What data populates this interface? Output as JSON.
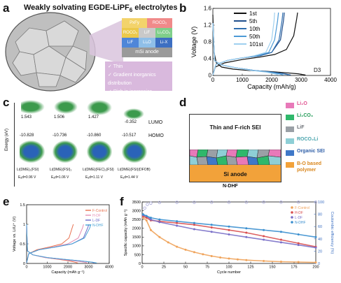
{
  "panels": {
    "a": {
      "label": "a",
      "title": "Weakly solvating EGDE-LiPF",
      "title_sub": "6",
      "title_tail": " electrolytes",
      "sei_layers": [
        {
          "cells": [
            {
              "text": "PxFy",
              "color": "#f3d36b"
            },
            {
              "text": "ROCO₂",
              "color": "#f08a8a"
            }
          ]
        },
        {
          "cells": [
            {
              "text": "ROCO₂",
              "color": "#ecc94b"
            },
            {
              "text": "LiF",
              "color": "#c9c9c9"
            },
            {
              "text": "Li₂CO₃",
              "color": "#7fcf8a"
            }
          ]
        },
        {
          "cells": [
            {
              "text": "LiF",
              "color": "#4f86d8"
            },
            {
              "text": "Li₂O",
              "color": "#8fbfe8"
            },
            {
              "text": "Li-X",
              "color": "#3d6fc2"
            }
          ]
        }
      ],
      "anode_label": "mSi anode",
      "bullets": [
        "Thin",
        "Gradient inorganics distribution",
        "Rich in inorganics"
      ]
    },
    "b": {
      "label": "b",
      "note": "D3"
    },
    "c": {
      "label": "c",
      "y_label": "Energy (eV)",
      "lumo_label": "LUMO",
      "homo_label": "HOMO",
      "lumo_values": [
        "1.543",
        "1.506",
        "1.427",
        "-0.352"
      ],
      "homo_values": [
        "-10.828",
        "-10.736",
        "-10.860",
        "-10.517"
      ],
      "species": [
        "Li(DME)₂(FSI)",
        "Li(DME)(FSI)₂",
        "Li(DME)(FEC)₂(FSI)",
        "Li(DME)(FSI)(DFOB)"
      ],
      "ead": [
        "Eₐd=0.96 V",
        "Eₐd=1.06 V",
        "Eₐd=1.11 V",
        "Eₐd=1.44 V"
      ]
    },
    "d": {
      "label": "d",
      "sei_text": "Thin and F-rich SEI",
      "anode_text": "Si anode",
      "caption": "N-DHF",
      "legend": [
        {
          "text": "Li₂O",
          "color": "#e879b9"
        },
        {
          "text": "Li₂CO₃",
          "color": "#2fb86b"
        },
        {
          "text": "LiF",
          "color": "#9aa0a6"
        },
        {
          "text": "ROCO₂Li",
          "color": "#8ecfd6"
        },
        {
          "text": "Organic SEI",
          "color": "#3f78c8"
        },
        {
          "text": "B-O based polymer",
          "color": "#f2a23a"
        }
      ]
    },
    "e": {
      "label": "e"
    },
    "f": {
      "label": "f"
    }
  },
  "chart_data": [
    {
      "id": "b",
      "type": "line",
      "xlabel": "Capacity (mAh/g)",
      "ylabel": "Voltage (V)",
      "xlim": [
        0,
        4000
      ],
      "ylim": [
        0,
        1.6
      ],
      "xticks": [
        0,
        1000,
        2000,
        3000,
        4000
      ],
      "yticks": [
        0,
        0.4,
        0.8,
        1.2,
        1.6
      ],
      "series": [
        {
          "name": "1st",
          "color": "#111111",
          "discharge": {
            "x": [
              0,
              40,
              120,
              300,
              700,
              1200,
              1800,
              2400,
              2900,
              3150
            ],
            "y": [
              1.45,
              0.55,
              0.3,
              0.2,
              0.15,
              0.12,
              0.1,
              0.07,
              0.04,
              0.01
            ]
          },
          "charge": {
            "x": [
              0,
              80,
              400,
              1000,
              1600,
              2100,
              2500,
              2750,
              2850,
              2880
            ],
            "y": [
              0.01,
              0.2,
              0.3,
              0.38,
              0.44,
              0.5,
              0.62,
              0.95,
              1.35,
              1.5
            ]
          }
        },
        {
          "name": "5th",
          "color": "#1f4e8c",
          "discharge": {
            "x": [
              0,
              60,
              300,
              800,
              1400,
              2000,
              2450,
              2650
            ],
            "y": [
              1.25,
              0.35,
              0.25,
              0.18,
              0.12,
              0.08,
              0.04,
              0.01
            ]
          },
          "charge": {
            "x": [
              0,
              100,
              500,
              1000,
              1600,
              2000,
              2300,
              2400,
              2430
            ],
            "y": [
              0.01,
              0.26,
              0.36,
              0.42,
              0.47,
              0.55,
              0.85,
              1.3,
              1.5
            ]
          }
        },
        {
          "name": "10th",
          "color": "#2f6fb0",
          "discharge": {
            "x": [
              0,
              60,
              300,
              800,
              1400,
              2000,
              2400,
              2600
            ],
            "y": [
              1.25,
              0.35,
              0.25,
              0.18,
              0.12,
              0.08,
              0.04,
              0.01
            ]
          },
          "charge": {
            "x": [
              0,
              100,
              500,
              1000,
              1600,
              2000,
              2250,
              2350,
              2380
            ],
            "y": [
              0.01,
              0.26,
              0.36,
              0.42,
              0.47,
              0.55,
              0.85,
              1.3,
              1.5
            ]
          }
        },
        {
          "name": "50th",
          "color": "#4c9ad6",
          "discharge": {
            "x": [
              0,
              60,
              300,
              800,
              1400,
              1900,
              2250,
              2400
            ],
            "y": [
              1.25,
              0.35,
              0.25,
              0.18,
              0.12,
              0.08,
              0.04,
              0.01
            ]
          },
          "charge": {
            "x": [
              0,
              100,
              500,
              1000,
              1500,
              1900,
              2100,
              2200,
              2230
            ],
            "y": [
              0.01,
              0.26,
              0.36,
              0.42,
              0.47,
              0.55,
              0.85,
              1.3,
              1.5
            ]
          }
        },
        {
          "name": "101st",
          "color": "#9fd0ef",
          "discharge": {
            "x": [
              0,
              60,
              300,
              800,
              1300,
              1800,
              2100,
              2250
            ],
            "y": [
              1.25,
              0.35,
              0.25,
              0.18,
              0.12,
              0.08,
              0.04,
              0.01
            ]
          },
          "charge": {
            "x": [
              0,
              100,
              500,
              1000,
              1400,
              1800,
              2000,
              2080,
              2100
            ],
            "y": [
              0.01,
              0.26,
              0.36,
              0.42,
              0.47,
              0.55,
              0.85,
              1.3,
              1.5
            ]
          }
        }
      ]
    },
    {
      "id": "e",
      "type": "line",
      "xlabel": "Capacity (mAh g⁻¹)",
      "ylabel": "Voltage vs. Li/Li⁺ (V)",
      "xlim": [
        0,
        4000
      ],
      "ylim": [
        0,
        1.5
      ],
      "xticks": [
        0,
        1000,
        2000,
        3000,
        4000
      ],
      "yticks": [
        0,
        0.5,
        1.0,
        1.5
      ],
      "series": [
        {
          "name": "F-Control",
          "color": "#e8704f",
          "discharge": {
            "x": [
              0,
              40,
              300,
              900,
              1600,
              2100,
              2350,
              2480
            ],
            "y": [
              1.0,
              0.32,
              0.22,
              0.15,
              0.1,
              0.06,
              0.03,
              0.01
            ]
          },
          "charge": {
            "x": [
              0,
              100,
              500,
              1100,
              1700,
              2050,
              2200,
              2260
            ],
            "y": [
              0.01,
              0.25,
              0.35,
              0.42,
              0.5,
              0.65,
              0.9,
              1.0
            ]
          }
        },
        {
          "name": "H-DF",
          "color": "#e58fb4",
          "discharge": {
            "x": [
              0,
              40,
              300,
              900,
              1700,
              2400,
              2800,
              2950
            ],
            "y": [
              1.0,
              0.32,
              0.22,
              0.15,
              0.1,
              0.06,
              0.03,
              0.01
            ]
          },
          "charge": {
            "x": [
              0,
              100,
              600,
              1300,
              2000,
              2500,
              2700,
              2760
            ],
            "y": [
              0.01,
              0.25,
              0.35,
              0.42,
              0.5,
              0.65,
              0.9,
              1.0
            ]
          }
        },
        {
          "name": "L-DF",
          "color": "#6a6ac9",
          "discharge": {
            "x": [
              0,
              40,
              300,
              1000,
              1900,
              2700,
              3150,
              3300
            ],
            "y": [
              1.0,
              0.32,
              0.22,
              0.15,
              0.1,
              0.06,
              0.03,
              0.01
            ]
          },
          "charge": {
            "x": [
              0,
              100,
              600,
              1400,
              2200,
              2750,
              2950,
              3020
            ],
            "y": [
              0.01,
              0.25,
              0.35,
              0.42,
              0.5,
              0.65,
              0.9,
              1.0
            ]
          }
        },
        {
          "name": "N-DHF",
          "color": "#4aa3d6",
          "discharge": {
            "x": [
              0,
              40,
              300,
              1000,
              1900,
              2700,
              3200,
              3400
            ],
            "y": [
              1.0,
              0.32,
              0.22,
              0.15,
              0.1,
              0.06,
              0.03,
              0.01
            ]
          },
          "charge": {
            "x": [
              0,
              100,
              600,
              1400,
              2200,
              2800,
              3050,
              3120
            ],
            "y": [
              0.01,
              0.25,
              0.35,
              0.42,
              0.5,
              0.65,
              0.9,
              1.0
            ]
          }
        }
      ]
    },
    {
      "id": "f",
      "type": "scatter",
      "xlabel": "Cycle number",
      "ylabel": "Specific capacity (mAh g⁻¹)",
      "y2label": "Coulombic efficiency (%)",
      "xlim": [
        0,
        200
      ],
      "ylim": [
        0,
        3500
      ],
      "y2lim": [
        0,
        100
      ],
      "xticks": [
        0,
        25,
        50,
        75,
        100,
        125,
        150,
        175,
        200
      ],
      "yticks": [
        0,
        500,
        1000,
        1500,
        2000,
        2500,
        3000,
        3500
      ],
      "y2ticks": [
        0,
        20,
        40,
        60,
        80,
        100
      ],
      "series": [
        {
          "name": "F-Control",
          "color": "#f0a35a",
          "x": [
            1,
            5,
            10,
            20,
            30,
            40,
            50,
            60,
            70,
            80,
            90,
            100,
            110,
            120,
            140,
            160,
            180,
            200
          ],
          "y": [
            2600,
            2450,
            1900,
            1500,
            1200,
            950,
            780,
            640,
            520,
            420,
            340,
            280,
            230,
            190,
            140,
            100,
            80,
            60
          ]
        },
        {
          "name": "H-DF",
          "color": "#d94f4f",
          "x": [
            1,
            5,
            10,
            20,
            40,
            60,
            80,
            100,
            120,
            140,
            160,
            180,
            200
          ],
          "y": [
            2700,
            2600,
            2450,
            2400,
            2300,
            2200,
            2050,
            1900,
            1750,
            1550,
            1350,
            1150,
            950
          ]
        },
        {
          "name": "L-DF",
          "color": "#7a70c8",
          "x": [
            1,
            5,
            10,
            20,
            40,
            60,
            80,
            100,
            120,
            140,
            160,
            180,
            200
          ],
          "y": [
            2750,
            2700,
            2500,
            2350,
            2150,
            1950,
            1800,
            1650,
            1500,
            1350,
            1200,
            1050,
            900
          ]
        },
        {
          "name": "N-DHF",
          "color": "#3b8fcf",
          "x": [
            1,
            5,
            10,
            20,
            40,
            60,
            80,
            100,
            120,
            140,
            160,
            180,
            200
          ],
          "y": [
            2800,
            2700,
            2600,
            2500,
            2400,
            2300,
            2200,
            2100,
            2000,
            1900,
            1800,
            1650,
            1500
          ]
        }
      ],
      "ce_series": {
        "color": "#a6a6d8",
        "x": [
          1,
          3,
          6,
          10,
          20,
          40,
          60,
          80,
          100,
          120,
          140,
          160,
          180,
          200
        ],
        "y": [
          75,
          90,
          96,
          98,
          99,
          99.3,
          99.4,
          99.5,
          99.5,
          99.5,
          99.6,
          99.6,
          99.6,
          99.6
        ]
      }
    }
  ]
}
